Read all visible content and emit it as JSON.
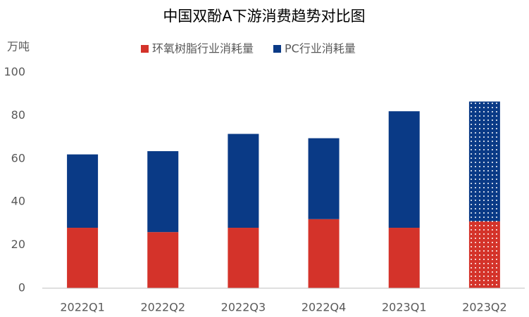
{
  "chart_data": {
    "type": "stacked_bar",
    "title": "中国双酚A下游消费趋势对比图",
    "y_unit": "万吨",
    "categories": [
      "2022Q1",
      "2022Q2",
      "2022Q3",
      "2022Q4",
      "2023Q1",
      "2023Q2"
    ],
    "series": [
      {
        "name": "环氧树脂行业消耗量",
        "color": "#d4332a",
        "values": [
          28,
          26,
          28,
          32,
          28,
          31
        ]
      },
      {
        "name": "PC行业消耗量",
        "color": "#0a3a86",
        "values": [
          34,
          37.5,
          43.5,
          37.5,
          54,
          55.5
        ]
      }
    ],
    "dotted": [
      false,
      false,
      false,
      false,
      false,
      true
    ],
    "ylim": [
      0,
      100
    ],
    "yticks": [
      0,
      20,
      40,
      60,
      80,
      100
    ],
    "grid": false,
    "legend": "top"
  }
}
